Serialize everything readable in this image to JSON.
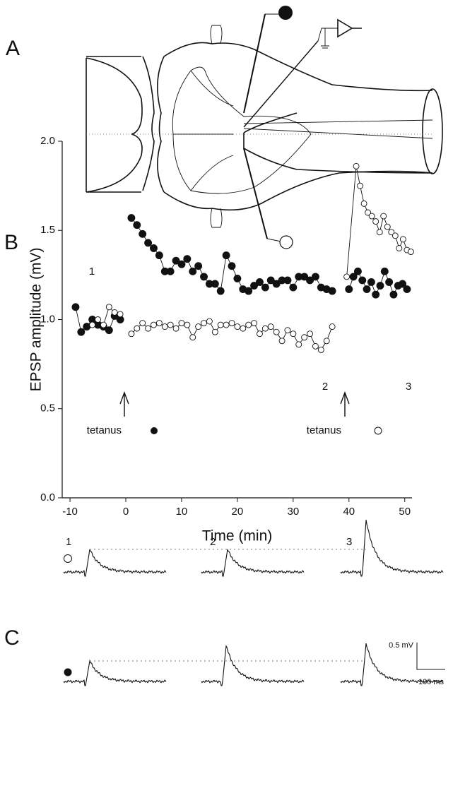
{
  "panel_labels": [
    "A",
    "B",
    "C"
  ],
  "chart_data": {
    "type": "line",
    "xlabel": "Time  (min)",
    "ylabel": "EPSP amplitude (mV)",
    "xlim": [
      -11.4,
      51.3
    ],
    "ylim": [
      0,
      2
    ],
    "xticks": [
      -10,
      0,
      10,
      20,
      30,
      40,
      50
    ],
    "yticks": [
      {
        "value": 0,
        "label": "0.0"
      },
      {
        "value": 0.5,
        "label": "0.5"
      },
      {
        "value": 1,
        "label": "1.0"
      },
      {
        "value": 1.5,
        "label": "1.5"
      },
      {
        "value": 2,
        "label": "2.0"
      }
    ],
    "series": [
      {
        "marker": "filled",
        "color": "#111111",
        "x": [
          -9,
          -8,
          -7,
          -6,
          -5,
          -4,
          -3,
          -2,
          -1,
          null,
          1,
          2,
          3,
          4,
          5,
          6,
          7,
          8,
          9,
          10,
          11,
          12,
          13,
          14,
          15,
          16,
          17,
          18,
          19,
          20,
          21,
          22,
          23,
          24,
          25,
          26,
          27,
          28,
          29,
          30,
          31,
          32,
          33,
          34,
          35,
          36,
          37,
          null,
          40,
          40.8,
          41.6,
          42.4,
          43.2,
          44,
          44.8,
          45.6,
          46.4,
          47.2,
          48,
          48.8,
          49.6,
          50.4
        ],
        "values": [
          1.07,
          0.93,
          0.96,
          1.0,
          0.97,
          0.96,
          0.94,
          1.02,
          1.0,
          null,
          1.57,
          1.53,
          1.48,
          1.43,
          1.4,
          1.36,
          1.27,
          1.27,
          1.33,
          1.31,
          1.34,
          1.27,
          1.3,
          1.24,
          1.2,
          1.2,
          1.16,
          1.36,
          1.3,
          1.23,
          1.17,
          1.16,
          1.19,
          1.21,
          1.18,
          1.22,
          1.2,
          1.22,
          1.22,
          1.18,
          1.24,
          1.24,
          1.22,
          1.24,
          1.18,
          1.17,
          1.16,
          null,
          1.17,
          1.24,
          1.27,
          1.22,
          1.17,
          1.21,
          1.14,
          1.19,
          1.27,
          1.21,
          1.14,
          1.19,
          1.2,
          1.17
        ]
      },
      {
        "marker": "open",
        "color": "#111111",
        "x": [
          -6,
          -5,
          -4,
          -3,
          -2,
          -1,
          null,
          1,
          2,
          3,
          4,
          5,
          6,
          7,
          8,
          9,
          10,
          11,
          12,
          13,
          14,
          15,
          16,
          17,
          18,
          19,
          20,
          21,
          22,
          23,
          24,
          25,
          26,
          27,
          28,
          29,
          30,
          31,
          32,
          33,
          34,
          35,
          36,
          37,
          null,
          39.6,
          41.3,
          42,
          42.7,
          43.4,
          44.1,
          44.8,
          45.5,
          46.2,
          46.9,
          47.6,
          48.3,
          49,
          49.7,
          50.4,
          51.1
        ],
        "values": [
          0.97,
          1.0,
          0.97,
          1.07,
          1.04,
          1.03,
          null,
          0.92,
          0.95,
          0.98,
          0.95,
          0.97,
          0.98,
          0.96,
          0.97,
          0.95,
          0.98,
          0.97,
          0.9,
          0.96,
          0.98,
          0.99,
          0.93,
          0.97,
          0.97,
          0.98,
          0.96,
          0.95,
          0.97,
          0.98,
          0.92,
          0.95,
          0.96,
          0.93,
          0.88,
          0.94,
          0.92,
          0.86,
          0.9,
          0.92,
          0.85,
          0.83,
          0.88,
          0.96,
          null,
          1.24,
          1.86,
          1.75,
          1.65,
          1.6,
          1.58,
          1.55,
          1.49,
          1.58,
          1.52,
          1.49,
          1.47,
          1.4,
          1.45,
          1.39,
          1.38
        ]
      }
    ],
    "annotations": [
      "1",
      "2",
      "3",
      "tetanus",
      "tetanus"
    ]
  },
  "traces": {
    "labels": [
      "1",
      "2",
      "3"
    ],
    "scale_voltage": "0.5 mV",
    "scale_time": "100 ms"
  }
}
